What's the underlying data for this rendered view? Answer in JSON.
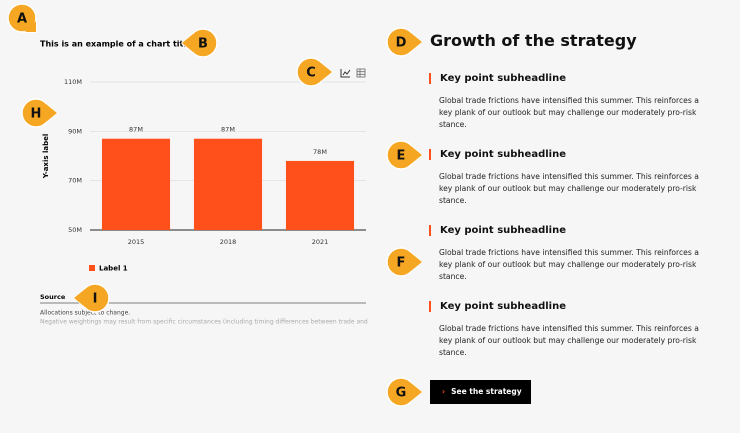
{
  "markers": [
    "A",
    "B",
    "C",
    "D",
    "E",
    "F",
    "G",
    "H",
    "I"
  ],
  "chart_data": {
    "type": "bar",
    "title": "This is an example of a chart title",
    "y_label": "Y-axis label",
    "categories": [
      "2015",
      "2018",
      "2021"
    ],
    "series": [
      {
        "name": "Label 1",
        "color": "#ff4f1a",
        "values": [
          87,
          87,
          78
        ],
        "value_labels": [
          "87M",
          "87M",
          "78M"
        ]
      }
    ],
    "ylim": [
      50,
      110
    ],
    "yticks": [
      {
        "value": 50,
        "label": "50M"
      },
      {
        "value": 70,
        "label": "70M"
      },
      {
        "value": 90,
        "label": "90M"
      },
      {
        "value": 110,
        "label": "110M"
      }
    ],
    "grid": true
  },
  "source": {
    "label": "Source",
    "notes": [
      "Allocations subject to change.",
      "Negative weightings may result from specific circumstances (including timing differences between trade and"
    ]
  },
  "content": {
    "title": "Growth of the strategy",
    "items": [
      {
        "headline": "Key point subheadline",
        "body": "Global trade frictions have intensified this summer. This reinforces a key plank of our outlook but may challenge our moderately pro-risk stance."
      },
      {
        "headline": "Key point subheadline",
        "body": "Global trade frictions have intensified this summer. This reinforces a key plank of our outlook but may challenge our moderately pro-risk stance."
      },
      {
        "headline": "Key point subheadline",
        "body": "Global trade frictions have intensified this summer. This reinforces a key plank of our outlook but may challenge our moderately pro-risk stance."
      },
      {
        "headline": "Key point subheadline",
        "body": "Global trade frictions have intensified this summer. This reinforces a key plank of our outlook but may challenge our moderately pro-risk stance."
      }
    ],
    "button": "See the strategy"
  }
}
